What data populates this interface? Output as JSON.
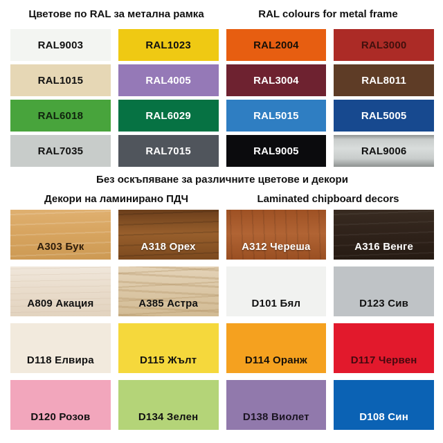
{
  "ral_section": {
    "title_bg": "Цветове по RAL за метална рамка",
    "title_en": "RAL colours for metal frame",
    "swatches": [
      {
        "label": "RAL9003",
        "texture": "flat",
        "text_color": "#111111",
        "colors": {
          "base": "#F3F5F2"
        }
      },
      {
        "label": "RAL1023",
        "texture": "flat",
        "text_color": "#111111",
        "colors": {
          "base": "#EFC913"
        }
      },
      {
        "label": "RAL2004",
        "texture": "flat",
        "text_color": "#161008",
        "colors": {
          "base": "#E75E11"
        }
      },
      {
        "label": "RAL3000",
        "texture": "flat",
        "text_color": "#41100D",
        "colors": {
          "base": "#AC2B26"
        }
      },
      {
        "label": "RAL1015",
        "texture": "flat",
        "text_color": "#111111",
        "colors": {
          "base": "#E6D7B5"
        }
      },
      {
        "label": "RAL4005",
        "texture": "flat",
        "text_color": "#FFFFFF",
        "colors": {
          "base": "#9579B7"
        }
      },
      {
        "label": "RAL3004",
        "texture": "flat",
        "text_color": "#FFFFFF",
        "colors": {
          "base": "#6E2230"
        }
      },
      {
        "label": "RAL8011",
        "texture": "flat",
        "text_color": "#FFFFFF",
        "colors": {
          "base": "#5E3C26"
        }
      },
      {
        "label": "RAL6018",
        "texture": "flat",
        "text_color": "#10230E",
        "colors": {
          "base": "#48A43C"
        }
      },
      {
        "label": "RAL6029",
        "texture": "flat",
        "text_color": "#FFFFFF",
        "colors": {
          "base": "#067243"
        }
      },
      {
        "label": "RAL5015",
        "texture": "flat",
        "text_color": "#FFFFFF",
        "colors": {
          "base": "#2F7EC2"
        }
      },
      {
        "label": "RAL5005",
        "texture": "flat",
        "text_color": "#FFFFFF",
        "colors": {
          "base": "#17498F"
        }
      },
      {
        "label": "RAL7035",
        "texture": "flat",
        "text_color": "#111111",
        "colors": {
          "base": "#C8CCCA"
        }
      },
      {
        "label": "RAL7015",
        "texture": "flat",
        "text_color": "#FFFFFF",
        "colors": {
          "base": "#50555C"
        }
      },
      {
        "label": "RAL9005",
        "texture": "flat",
        "text_color": "#FFFFFF",
        "colors": {
          "base": "#0B0B0D"
        }
      },
      {
        "label": "RAL9006",
        "texture": "metal",
        "text_color": "#111111",
        "colors": {
          "base": "#C9CDCC",
          "hi": "#D8DCDB",
          "lo": "#8E9291"
        }
      }
    ]
  },
  "note": "Без оскъпяване за различните цветове и декори",
  "decor_section": {
    "title_bg": "Декори на ламинирано ПДЧ",
    "title_en": "Laminated chipboard decors",
    "swatches": [
      {
        "label": "A303 Бук",
        "texture": "beech",
        "text_color": "#2E1C0A",
        "shadow": false,
        "colors": {
          "hi": "#DFB070",
          "base": "#D7A45F",
          "lo": "#CD9A54",
          "streak": "#FFFFFF26"
        }
      },
      {
        "label": "A318 Орех",
        "texture": "walnut",
        "text_color": "#FFFFFF",
        "shadow": true,
        "colors": {
          "hi": "#6B3E1B",
          "base": "#985F2C",
          "lo": "#7B491E",
          "streak": "#00000022"
        }
      },
      {
        "label": "A312 Череша",
        "texture": "cherry",
        "text_color": "#FFFFFF",
        "shadow": true,
        "colors": {
          "hi": "#9E5124",
          "base": "#B16434",
          "lo": "#9A4F22",
          "streak": "#00000018"
        }
      },
      {
        "label": "A316 Венге",
        "texture": "wenge",
        "text_color": "#FFFFFF",
        "shadow": false,
        "colors": {
          "hi": "#382B21",
          "base": "#2F221A",
          "lo": "#261B13",
          "streak": "#FFFFFF0D"
        }
      },
      {
        "label": "A809 Акация",
        "texture": "acacia",
        "text_color": "#111111",
        "shadow": false,
        "colors": {
          "hi": "#F0E7DB",
          "base": "#E9DCCB",
          "lo": "#E2D3BF",
          "streak": "#C9B49C40"
        }
      },
      {
        "label": "A385 Астра",
        "texture": "astra",
        "text_color": "#111111",
        "shadow": false,
        "colors": {
          "hi": "#E4D3B8",
          "base": "#DBC7A6",
          "lo": "#D2BB94",
          "streak": "#B3946655"
        }
      },
      {
        "label": "D101 Бял",
        "texture": "flat",
        "text_color": "#111111",
        "shadow": false,
        "colors": {
          "base": "#F1F2F0"
        }
      },
      {
        "label": "D123 Сив",
        "texture": "flat",
        "text_color": "#111111",
        "shadow": false,
        "colors": {
          "base": "#BFC3C6"
        }
      },
      {
        "label": "D118 Елвира",
        "texture": "flat",
        "text_color": "#111111",
        "shadow": false,
        "colors": {
          "base": "#F2EADD"
        }
      },
      {
        "label": "D115 Жълт",
        "texture": "flat",
        "text_color": "#111111",
        "shadow": false,
        "colors": {
          "base": "#F5D83C"
        }
      },
      {
        "label": "D114 Оранж",
        "texture": "flat",
        "text_color": "#16100A",
        "shadow": false,
        "colors": {
          "base": "#F5A11F"
        }
      },
      {
        "label": "D117 Червен",
        "texture": "flat",
        "text_color": "#45090F",
        "shadow": false,
        "colors": {
          "base": "#E2192C"
        }
      },
      {
        "label": "D120 Розов",
        "texture": "flat",
        "text_color": "#111111",
        "shadow": false,
        "colors": {
          "base": "#F2A6BC"
        }
      },
      {
        "label": "D134 Зелен",
        "texture": "flat",
        "text_color": "#111111",
        "shadow": false,
        "colors": {
          "base": "#B4D478"
        }
      },
      {
        "label": "D138 Виолет",
        "texture": "flat",
        "text_color": "#1C1523",
        "shadow": false,
        "colors": {
          "base": "#9179AC"
        }
      },
      {
        "label": "D108 Син",
        "texture": "flat",
        "text_color": "#FFFFFF",
        "shadow": false,
        "colors": {
          "base": "#0B62B4"
        }
      }
    ]
  }
}
